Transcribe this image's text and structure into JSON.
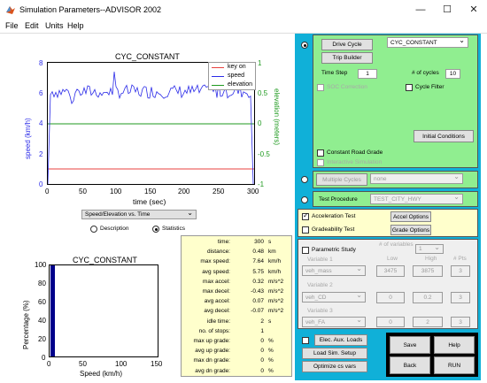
{
  "window": {
    "title": "Simulation Parameters--ADVISOR 2002",
    "minimize": "—",
    "maximize": "☐",
    "close": "✕"
  },
  "menu": [
    "File",
    "Edit",
    "Units",
    "Help"
  ],
  "plot": {
    "title": "CYC_CONSTANT",
    "xlabel": "time (sec)",
    "ylabel_left": "speed (km/h)",
    "ylabel_right": "elevation (meters)",
    "xticks": [
      "0",
      "50",
      "100",
      "150",
      "200",
      "250",
      "300"
    ],
    "yticks_left": [
      "0",
      "2",
      "4",
      "6",
      "8"
    ],
    "yticks_right": [
      "1",
      "0.5",
      "0",
      "-0.5",
      "-1"
    ],
    "legend": [
      "key on",
      "speed",
      "elevation"
    ],
    "colors": {
      "key_on": "#e8413f",
      "speed": "#2b2be8",
      "elevation": "#1f9a1f"
    }
  },
  "plot_select": "Speed/Elevation vs. Time",
  "view_options": {
    "description": "Description",
    "statistics": "Statistics"
  },
  "hist": {
    "title": "CYC_CONSTANT",
    "xlabel": "Speed (km/h)",
    "ylabel": "Percentage (%)",
    "xticks": [
      "0",
      "50",
      "100",
      "150"
    ],
    "yticks": [
      "100",
      "80",
      "60",
      "40",
      "20",
      "0"
    ],
    "bar_color": "#00008b"
  },
  "stats": [
    {
      "label": "time:",
      "value": "300",
      "unit": "s"
    },
    {
      "label": "distance:",
      "value": "0.48",
      "unit": "km"
    },
    {
      "label": "max speed:",
      "value": "7.64",
      "unit": "km/h"
    },
    {
      "label": "avg speed:",
      "value": "5.75",
      "unit": "km/h"
    },
    {
      "label": "max accel:",
      "value": "0.32",
      "unit": "m/s^2"
    },
    {
      "label": "max decel:",
      "value": "-0.43",
      "unit": "m/s^2"
    },
    {
      "label": "avg accel:",
      "value": "0.07",
      "unit": "m/s^2"
    },
    {
      "label": "avg decel:",
      "value": "-0.07",
      "unit": "m/s^2"
    },
    {
      "label": "idle time:",
      "value": "2",
      "unit": "s"
    },
    {
      "label": "no. of stops:",
      "value": "1",
      "unit": ""
    },
    {
      "label": "max up grade:",
      "value": "0",
      "unit": "%"
    },
    {
      "label": "avg up grade:",
      "value": "0",
      "unit": "%"
    },
    {
      "label": "max dn grade:",
      "value": "0",
      "unit": "%"
    },
    {
      "label": "avg dn grade:",
      "value": "0",
      "unit": "%"
    }
  ],
  "drive": {
    "drive_cycle": "Drive Cycle",
    "trip_builder": "Trip Builder",
    "cycle_value": "CYC_CONSTANT",
    "time_step_label": "Time Step",
    "time_step": "1",
    "num_cycles_label": "# of cycles",
    "num_cycles": "10",
    "soc_correction": "SOC Correction",
    "cycle_filter": "Cycle Filter",
    "initial_conditions": "Initial Conditions",
    "constant_road_grade": "Constant Road Grade",
    "interactive_sim": "Interactive Simulation",
    "multiple_cycles": "Multiple Cycles",
    "multiple_value": "none",
    "test_procedure": "Test Procedure",
    "test_value": "TEST_CITY_HWY"
  },
  "tests": {
    "accel_test": "Acceleration Test",
    "accel_options": "Accel Options",
    "grade_test": "Gradeability Test",
    "grade_options": "Grade Options"
  },
  "param": {
    "title": "Parametric Study",
    "num_vars_label": "# of variables",
    "num_vars": "1",
    "cols": [
      "Low",
      "High",
      "# Pts"
    ],
    "rows": [
      {
        "label": "Variable 1",
        "name": "veh_mass",
        "low": "3475",
        "high": "3875",
        "pts": "3"
      },
      {
        "label": "Variable 2",
        "name": "veh_CD",
        "low": "0",
        "high": "0.2",
        "pts": "3"
      },
      {
        "label": "Variable 3",
        "name": "veh_FA",
        "low": "0",
        "high": "2",
        "pts": "3"
      }
    ]
  },
  "bottom": {
    "elec_aux": "Elec. Aux. Loads",
    "load_setup": "Load Sim. Setup",
    "optimize": "Optimize cs vars",
    "save": "Save",
    "help": "Help",
    "back": "Back",
    "run": "RUN"
  }
}
